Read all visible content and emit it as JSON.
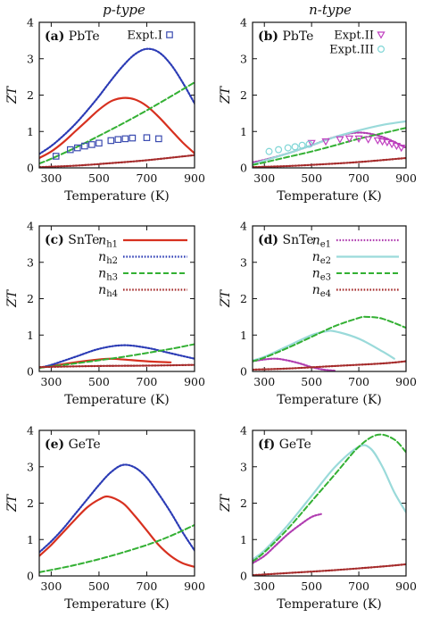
{
  "column_titles": {
    "left": "p-type",
    "right": "n-type"
  },
  "chart_data": [
    {
      "type": "line",
      "panel": "(a)",
      "label": "PbTe",
      "xlabel": "Temperature (K)",
      "ylabel": "ZT",
      "xlim": [
        250,
        900
      ],
      "ylim": [
        0,
        4
      ],
      "xticks": [
        300,
        500,
        700,
        900
      ],
      "yticks": [
        0,
        1,
        2,
        3,
        4
      ],
      "series": [
        {
          "key": "h1",
          "color": "#d7301f",
          "style": "solid",
          "x": [
            250,
            300,
            350,
            400,
            450,
            500,
            550,
            600,
            650,
            700,
            750,
            800,
            850,
            900
          ],
          "y": [
            0.27,
            0.45,
            0.7,
            1.0,
            1.3,
            1.6,
            1.83,
            1.92,
            1.88,
            1.7,
            1.4,
            1.05,
            0.7,
            0.4
          ]
        },
        {
          "key": "h2",
          "color": "#2b3bb5",
          "style": "dotted",
          "x": [
            250,
            300,
            350,
            400,
            450,
            500,
            550,
            600,
            650,
            700,
            750,
            800,
            850,
            900
          ],
          "y": [
            0.38,
            0.6,
            0.88,
            1.2,
            1.57,
            1.97,
            2.4,
            2.8,
            3.12,
            3.27,
            3.18,
            2.85,
            2.35,
            1.77
          ]
        },
        {
          "key": "h3",
          "color": "#33b033",
          "style": "dashed",
          "x": [
            250,
            300,
            400,
            500,
            600,
            700,
            800,
            900
          ],
          "y": [
            0.12,
            0.25,
            0.55,
            0.88,
            1.22,
            1.58,
            1.96,
            2.35
          ]
        },
        {
          "key": "h4",
          "color": "#a52a2a",
          "style": "dotted",
          "x": [
            250,
            400,
            550,
            700,
            900
          ],
          "y": [
            0.02,
            0.06,
            0.13,
            0.21,
            0.35
          ]
        },
        {
          "name": "Expt.I",
          "kind": "markers",
          "marker": "square",
          "color": "#3a4bb0",
          "x": [
            320,
            380,
            410,
            440,
            470,
            500,
            550,
            580,
            610,
            640,
            700,
            750
          ],
          "y": [
            0.32,
            0.5,
            0.55,
            0.6,
            0.64,
            0.68,
            0.75,
            0.78,
            0.8,
            0.82,
            0.83,
            0.8
          ]
        }
      ]
    },
    {
      "type": "line",
      "panel": "(b)",
      "label": "PbTe",
      "xlabel": "Temperature (K)",
      "ylabel": "ZT",
      "xlim": [
        250,
        900
      ],
      "ylim": [
        0,
        4
      ],
      "xticks": [
        300,
        500,
        700,
        900
      ],
      "yticks": [
        0,
        1,
        2,
        3,
        4
      ],
      "series": [
        {
          "key": "e1",
          "color": "#b03cb0",
          "style": "dotted",
          "x": [
            250,
            300,
            400,
            500,
            600,
            700,
            800,
            900
          ],
          "y": [
            0.15,
            0.22,
            0.4,
            0.62,
            0.85,
            0.97,
            0.85,
            0.55
          ]
        },
        {
          "key": "e2",
          "color": "#9adada",
          "style": "solid",
          "x": [
            250,
            300,
            400,
            500,
            600,
            700,
            800,
            900
          ],
          "y": [
            0.1,
            0.2,
            0.4,
            0.62,
            0.85,
            1.03,
            1.18,
            1.28
          ]
        },
        {
          "key": "e3",
          "color": "#33b033",
          "style": "dashed",
          "x": [
            250,
            300,
            400,
            500,
            600,
            700,
            800,
            900
          ],
          "y": [
            0.08,
            0.15,
            0.3,
            0.45,
            0.62,
            0.8,
            0.95,
            1.1
          ]
        },
        {
          "key": "e4",
          "color": "#a52a2a",
          "style": "dotted",
          "x": [
            250,
            400,
            550,
            700,
            900
          ],
          "y": [
            0.02,
            0.05,
            0.1,
            0.16,
            0.27
          ]
        },
        {
          "name": "Expt.II",
          "kind": "markers",
          "marker": "triangle-down",
          "color": "#c040c0",
          "x": [
            500,
            560,
            620,
            660,
            700,
            740,
            780,
            800,
            820,
            840,
            860,
            880
          ],
          "y": [
            0.68,
            0.72,
            0.78,
            0.8,
            0.8,
            0.78,
            0.75,
            0.72,
            0.7,
            0.65,
            0.6,
            0.55
          ]
        },
        {
          "name": "Expt.III",
          "kind": "markers",
          "marker": "circle",
          "color": "#7fd6d6",
          "x": [
            320,
            360,
            400,
            430,
            460,
            490
          ],
          "y": [
            0.45,
            0.5,
            0.55,
            0.58,
            0.62,
            0.65
          ]
        }
      ]
    },
    {
      "type": "line",
      "panel": "(c)",
      "label": "SnTe",
      "xlabel": "Temperature (K)",
      "ylabel": "ZT",
      "xlim": [
        250,
        900
      ],
      "ylim": [
        0,
        4
      ],
      "xticks": [
        300,
        500,
        700,
        900
      ],
      "yticks": [
        0,
        1,
        2,
        3,
        4
      ],
      "legend": {
        "position": "top-right",
        "entries": [
          {
            "base": "n",
            "sub": "h1",
            "key": "h1"
          },
          {
            "base": "n",
            "sub": "h2",
            "key": "h2"
          },
          {
            "base": "n",
            "sub": "h3",
            "key": "h3"
          },
          {
            "base": "n",
            "sub": "h4",
            "key": "h4"
          }
        ]
      },
      "series": [
        {
          "key": "h1",
          "color": "#d7301f",
          "style": "solid",
          "x": [
            250,
            300,
            400,
            500,
            550,
            600,
            700,
            800
          ],
          "y": [
            0.1,
            0.15,
            0.25,
            0.33,
            0.35,
            0.33,
            0.28,
            0.25
          ]
        },
        {
          "key": "h2",
          "color": "#2b3bb5",
          "style": "dotted",
          "x": [
            250,
            300,
            400,
            500,
            600,
            700,
            800,
            900
          ],
          "y": [
            0.1,
            0.18,
            0.4,
            0.62,
            0.72,
            0.65,
            0.5,
            0.35
          ]
        },
        {
          "key": "h3",
          "color": "#33b033",
          "style": "dashed",
          "x": [
            250,
            400,
            600,
            800,
            900
          ],
          "y": [
            0.1,
            0.22,
            0.4,
            0.62,
            0.75
          ]
        },
        {
          "key": "h4",
          "color": "#a52a2a",
          "style": "dotted",
          "x": [
            250,
            500,
            700,
            900
          ],
          "y": [
            0.12,
            0.15,
            0.16,
            0.18
          ]
        }
      ]
    },
    {
      "type": "line",
      "panel": "(d)",
      "label": "SnTe",
      "xlabel": "Temperature (K)",
      "ylabel": "ZT",
      "xlim": [
        250,
        900
      ],
      "ylim": [
        0,
        4
      ],
      "xticks": [
        300,
        500,
        700,
        900
      ],
      "yticks": [
        0,
        1,
        2,
        3,
        4
      ],
      "legend": {
        "position": "top-right",
        "entries": [
          {
            "base": "n",
            "sub": "e1",
            "key": "e1"
          },
          {
            "base": "n",
            "sub": "e2",
            "key": "e2"
          },
          {
            "base": "n",
            "sub": "e3",
            "key": "e3"
          },
          {
            "base": "n",
            "sub": "e4",
            "key": "e4"
          }
        ]
      },
      "series": [
        {
          "key": "e1",
          "color": "#b03cb0",
          "style": "dotted",
          "x": [
            250,
            300,
            350,
            400,
            450,
            500,
            550,
            600
          ],
          "y": [
            0.28,
            0.33,
            0.35,
            0.3,
            0.22,
            0.12,
            0.05,
            0.02
          ]
        },
        {
          "key": "e2",
          "color": "#9adada",
          "style": "solid",
          "x": [
            250,
            300,
            400,
            500,
            560,
            600,
            700,
            800,
            850
          ],
          "y": [
            0.3,
            0.4,
            0.7,
            1.0,
            1.1,
            1.1,
            0.9,
            0.55,
            0.35
          ]
        },
        {
          "key": "e3",
          "color": "#33b033",
          "style": "dashed",
          "x": [
            250,
            300,
            400,
            500,
            600,
            700,
            730,
            800,
            900
          ],
          "y": [
            0.28,
            0.38,
            0.65,
            0.95,
            1.25,
            1.47,
            1.5,
            1.45,
            1.2
          ]
        },
        {
          "key": "e4",
          "color": "#a52a2a",
          "style": "dotted",
          "x": [
            250,
            400,
            600,
            800,
            900
          ],
          "y": [
            0.05,
            0.08,
            0.15,
            0.22,
            0.28
          ]
        }
      ]
    },
    {
      "type": "line",
      "panel": "(e)",
      "label": "GeTe",
      "xlabel": "Temperature (K)",
      "ylabel": "ZT",
      "xlim": [
        250,
        900
      ],
      "ylim": [
        0,
        4
      ],
      "xticks": [
        300,
        500,
        700,
        900
      ],
      "yticks": [
        0,
        1,
        2,
        3,
        4
      ],
      "series": [
        {
          "key": "h1",
          "color": "#d7301f",
          "style": "solid",
          "x": [
            250,
            300,
            350,
            400,
            450,
            500,
            540,
            600,
            650,
            700,
            750,
            800,
            850,
            900
          ],
          "y": [
            0.55,
            0.85,
            1.2,
            1.55,
            1.88,
            2.1,
            2.18,
            2.0,
            1.65,
            1.25,
            0.85,
            0.55,
            0.35,
            0.25
          ]
        },
        {
          "key": "h2",
          "color": "#2b3bb5",
          "style": "dotted",
          "x": [
            250,
            300,
            350,
            400,
            450,
            500,
            550,
            600,
            650,
            700,
            750,
            800,
            850,
            900
          ],
          "y": [
            0.65,
            0.95,
            1.3,
            1.7,
            2.1,
            2.5,
            2.85,
            3.05,
            2.98,
            2.7,
            2.25,
            1.75,
            1.2,
            0.7
          ]
        },
        {
          "key": "h3",
          "color": "#33b033",
          "style": "dashed",
          "x": [
            250,
            400,
            550,
            700,
            800,
            900
          ],
          "y": [
            0.1,
            0.3,
            0.55,
            0.85,
            1.1,
            1.4
          ]
        }
      ]
    },
    {
      "type": "line",
      "panel": "(f)",
      "label": "GeTe",
      "xlabel": "Temperature (K)",
      "ylabel": "ZT",
      "xlim": [
        250,
        900
      ],
      "ylim": [
        0,
        4
      ],
      "xticks": [
        300,
        500,
        700,
        900
      ],
      "yticks": [
        0,
        1,
        2,
        3,
        4
      ],
      "series": [
        {
          "key": "e1",
          "color": "#b03cb0",
          "style": "dotted",
          "x": [
            250,
            300,
            350,
            400,
            450,
            500,
            540
          ],
          "y": [
            0.35,
            0.55,
            0.85,
            1.15,
            1.4,
            1.62,
            1.7
          ]
        },
        {
          "key": "e2",
          "color": "#9adada",
          "style": "solid",
          "x": [
            250,
            300,
            400,
            500,
            600,
            700,
            750,
            800,
            850,
            900
          ],
          "y": [
            0.45,
            0.7,
            1.4,
            2.2,
            3.0,
            3.55,
            3.5,
            3.0,
            2.3,
            1.75
          ]
        },
        {
          "key": "e3",
          "color": "#33b033",
          "style": "dashed",
          "x": [
            250,
            300,
            400,
            500,
            600,
            700,
            780,
            850,
            900
          ],
          "y": [
            0.4,
            0.65,
            1.3,
            2.05,
            2.8,
            3.55,
            3.88,
            3.75,
            3.4
          ]
        },
        {
          "key": "e4",
          "color": "#a52a2a",
          "style": "dotted",
          "x": [
            250,
            400,
            600,
            800,
            900
          ],
          "y": [
            0.02,
            0.08,
            0.16,
            0.26,
            0.32
          ]
        }
      ]
    }
  ]
}
